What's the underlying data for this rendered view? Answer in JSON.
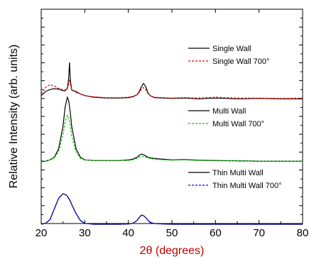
{
  "chart_data": {
    "type": "line",
    "xlabel": "2θ  (degrees)",
    "ylabel": "Relative Intensity  (arb. units)",
    "xlim": [
      20,
      80
    ],
    "x_ticks": [
      20,
      30,
      40,
      50,
      60,
      70,
      80
    ],
    "y_ticks_labeled": false,
    "grid": false,
    "x": [
      20,
      21,
      22,
      23,
      24,
      25,
      25.5,
      26,
      26.3,
      26.5,
      26.7,
      27,
      28,
      29,
      30,
      32,
      35,
      38,
      40,
      41,
      42,
      42.5,
      43,
      43.5,
      44,
      44.5,
      45,
      46,
      48,
      50,
      53,
      56,
      60,
      65,
      70,
      75,
      80
    ],
    "panels": [
      {
        "legend_position": "right",
        "series": [
          {
            "name": "Single Wall",
            "color": "#000000",
            "dash": "solid",
            "values": [
              0.18,
              0.28,
              0.33,
              0.35,
              0.34,
              0.3,
              0.3,
              0.36,
              0.6,
              1.0,
              0.55,
              0.32,
              0.28,
              0.22,
              0.18,
              0.14,
              0.12,
              0.12,
              0.13,
              0.15,
              0.2,
              0.28,
              0.4,
              0.48,
              0.4,
              0.25,
              0.18,
              0.13,
              0.12,
              0.11,
              0.12,
              0.1,
              0.12,
              0.1,
              0.11,
              0.1,
              0.1
            ]
          },
          {
            "name": "Single Wall 700°",
            "color": "#ff0000",
            "dash": "dashed",
            "values": [
              0.22,
              0.38,
              0.45,
              0.42,
              0.36,
              0.33,
              0.32,
              0.35,
              0.45,
              0.58,
              0.45,
              0.32,
              0.26,
              0.22,
              0.18,
              0.15,
              0.13,
              0.13,
              0.14,
              0.16,
              0.2,
              0.26,
              0.34,
              0.38,
              0.33,
              0.23,
              0.18,
              0.14,
              0.13,
              0.12,
              0.13,
              0.12,
              0.14,
              0.12,
              0.12,
              0.11,
              0.12
            ]
          }
        ]
      },
      {
        "legend_position": "right",
        "series": [
          {
            "name": "Multi Wall",
            "color": "#000000",
            "dash": "solid",
            "values": [
              0.0,
              0.01,
              0.03,
              0.07,
              0.2,
              0.55,
              0.85,
              1.0,
              0.95,
              0.85,
              0.75,
              0.55,
              0.2,
              0.07,
              0.03,
              0.02,
              0.02,
              0.02,
              0.03,
              0.04,
              0.07,
              0.1,
              0.12,
              0.11,
              0.09,
              0.07,
              0.06,
              0.05,
              0.04,
              0.03,
              0.035,
              0.025,
              0.02,
              0.015,
              0.01,
              0.01,
              0.01
            ]
          },
          {
            "name": "Multi Wall 700°",
            "color": "#00cc00",
            "dash": "dashed",
            "values": [
              0.0,
              0.01,
              0.03,
              0.06,
              0.16,
              0.42,
              0.62,
              0.72,
              0.68,
              0.62,
              0.55,
              0.4,
              0.15,
              0.05,
              0.03,
              0.02,
              0.02,
              0.02,
              0.02,
              0.03,
              0.05,
              0.07,
              0.09,
              0.08,
              0.07,
              0.06,
              0.05,
              0.04,
              0.03,
              0.025,
              0.03,
              0.02,
              0.015,
              0.015,
              0.01,
              0.01,
              0.01
            ]
          }
        ]
      },
      {
        "legend_position": "right",
        "series": [
          {
            "name": "Thin Multi Wall",
            "color": "#000000",
            "dash": "solid",
            "values": [
              0.0,
              0.03,
              0.15,
              0.5,
              0.85,
              1.0,
              0.98,
              0.92,
              0.85,
              0.8,
              0.75,
              0.65,
              0.35,
              0.12,
              0.03,
              0.0,
              0.0,
              0.0,
              0.01,
              0.03,
              0.12,
              0.22,
              0.3,
              0.28,
              0.22,
              0.13,
              0.06,
              0.02,
              0.01,
              0.0,
              0.0,
              0.0,
              0.0,
              0.0,
              0.0,
              0.0,
              0.0
            ]
          },
          {
            "name": "Thin Multi Wall 700°",
            "color": "#0000ff",
            "dash": "dashed",
            "values": [
              0.0,
              0.03,
              0.15,
              0.5,
              0.85,
              1.0,
              0.98,
              0.92,
              0.85,
              0.8,
              0.75,
              0.65,
              0.35,
              0.12,
              0.03,
              0.0,
              0.0,
              0.0,
              0.01,
              0.03,
              0.12,
              0.22,
              0.3,
              0.28,
              0.22,
              0.13,
              0.06,
              0.02,
              0.01,
              0.0,
              0.0,
              0.0,
              0.0,
              0.0,
              0.0,
              0.0,
              0.0
            ]
          }
        ]
      }
    ]
  }
}
